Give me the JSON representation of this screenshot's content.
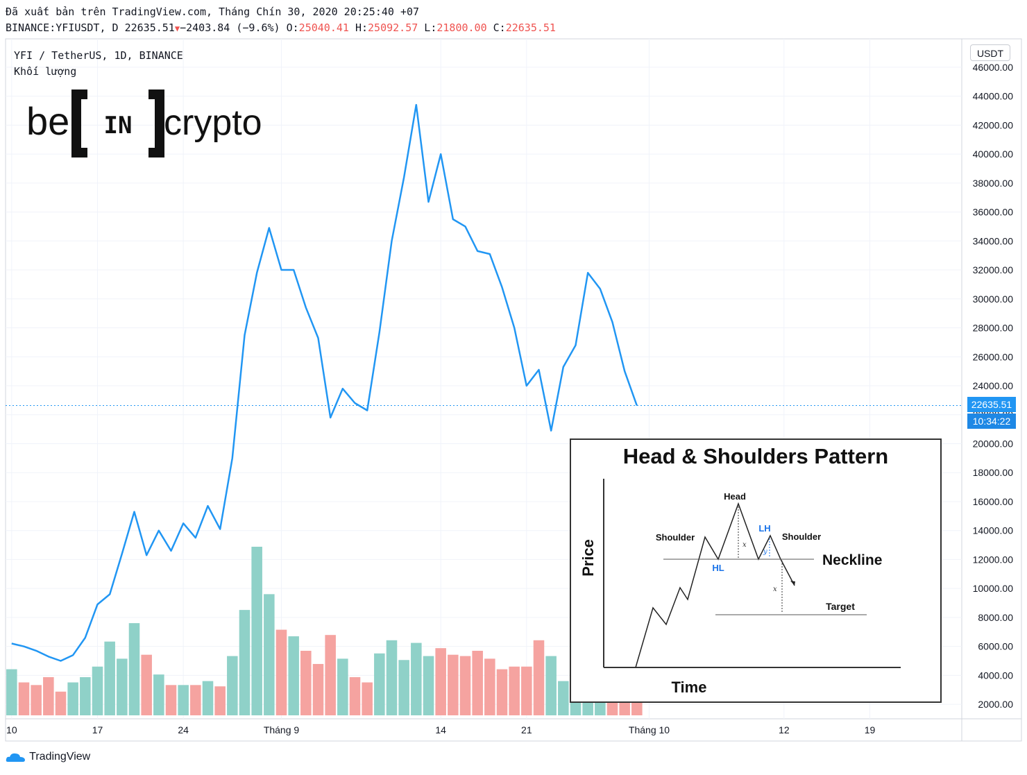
{
  "header": {
    "published": "Đã xuất bản trên TradingView.com, Tháng Chín 30, 2020 20:25:40 +07",
    "symbol_line": "BINANCE:YFIUSDT, D 22635.51",
    "change": "−2403.84 (−9.6%)",
    "o_label": "O:",
    "o_value": "25040.41",
    "h_label": "H:",
    "h_value": "25092.57",
    "l_label": "L:",
    "l_value": "21800.00",
    "c_label": "C:",
    "c_value": "22635.51"
  },
  "legend": {
    "title": "YFI / TetherUS, 1D, BINANCE",
    "volume": "Khối lượng"
  },
  "logo": {
    "left": "be",
    "mid": "IN",
    "right": "crypto"
  },
  "axis": {
    "currency": "USDT",
    "last_price": "22635.51",
    "countdown": "10:34:22"
  },
  "footer": {
    "brand": "TradingView"
  },
  "inset": {
    "title": "Head & Shoulders Pattern",
    "xlabel": "Time",
    "ylabel": "Price",
    "labels": {
      "head": "Head",
      "shoulder_left": "Shoulder",
      "shoulder_right": "Shoulder",
      "hl": "HL",
      "lh": "LH",
      "neckline": "Neckline",
      "target": "Target",
      "x1": "x",
      "x2": "x",
      "y": "y"
    }
  },
  "colors": {
    "line": "#2196f3",
    "vol_up": "#8fd1c8",
    "vol_down": "#f5a3a0",
    "red": "#ef5350"
  },
  "chart_data": {
    "type": "line",
    "title": "YFI / TetherUS, 1D, BINANCE",
    "y_ticks": [
      "2000.00",
      "4000.00",
      "6000.00",
      "8000.00",
      "10000.00",
      "12000.00",
      "14000.00",
      "16000.00",
      "18000.00",
      "20000.00",
      "22000.00",
      "24000.00",
      "26000.00",
      "28000.00",
      "30000.00",
      "32000.00",
      "34000.00",
      "36000.00",
      "38000.00",
      "40000.00",
      "42000.00",
      "44000.00",
      "46000.00"
    ],
    "ylim": [
      1000,
      47000
    ],
    "x_ticks": [
      {
        "label": "10",
        "day": 0
      },
      {
        "label": "17",
        "day": 7
      },
      {
        "label": "24",
        "day": 14
      },
      {
        "label": "Tháng 9",
        "day": 22
      },
      {
        "label": "14",
        "day": 35
      },
      {
        "label": "21",
        "day": 42
      },
      {
        "label": "Tháng 10",
        "day": 52
      },
      {
        "label": "12",
        "day": 63
      },
      {
        "label": "19",
        "day": 70
      }
    ],
    "x_range_days": [
      -0.5,
      77.5
    ],
    "series": [
      {
        "name": "YFI / TetherUS",
        "values": [
          6200,
          6000,
          5700,
          5300,
          5000,
          5400,
          6600,
          8900,
          9600,
          12400,
          15300,
          12300,
          14000,
          12600,
          14500,
          13500,
          15700,
          14100,
          19000,
          27500,
          31800,
          34900,
          32000,
          32000,
          29400,
          27300,
          21800,
          23800,
          22800,
          22300,
          27700,
          34000,
          38400,
          43400,
          36700,
          40000,
          35500,
          35000,
          33300,
          33100,
          30800,
          28000,
          24000,
          25100,
          20900,
          25300,
          26800,
          31800,
          30700,
          28400,
          25000,
          22635.51
        ]
      }
    ],
    "volume": {
      "values": [
        3500,
        2500,
        2300,
        2900,
        1800,
        2500,
        2900,
        3700,
        5600,
        4300,
        7000,
        4600,
        3100,
        2300,
        2300,
        2300,
        2600,
        2200,
        4500,
        8000,
        12800,
        9200,
        6500,
        6000,
        4900,
        3900,
        6100,
        4300,
        2900,
        2500,
        4700,
        5700,
        4200,
        5500,
        4500,
        5100,
        4600,
        4500,
        4900,
        4300,
        3500,
        3700,
        3700,
        5700,
        4500,
        2600,
        2100,
        1700,
        1500,
        1400,
        1300,
        1200
      ],
      "direction": [
        "up",
        "down",
        "down",
        "down",
        "down",
        "up",
        "up",
        "up",
        "up",
        "up",
        "up",
        "down",
        "up",
        "down",
        "up",
        "down",
        "up",
        "down",
        "up",
        "up",
        "up",
        "up",
        "down",
        "up",
        "down",
        "down",
        "down",
        "up",
        "down",
        "down",
        "up",
        "up",
        "up",
        "up",
        "up",
        "down",
        "down",
        "down",
        "down",
        "down",
        "down",
        "down",
        "down",
        "down",
        "up",
        "up",
        "up",
        "up",
        "up",
        "down",
        "down",
        "down"
      ]
    }
  }
}
